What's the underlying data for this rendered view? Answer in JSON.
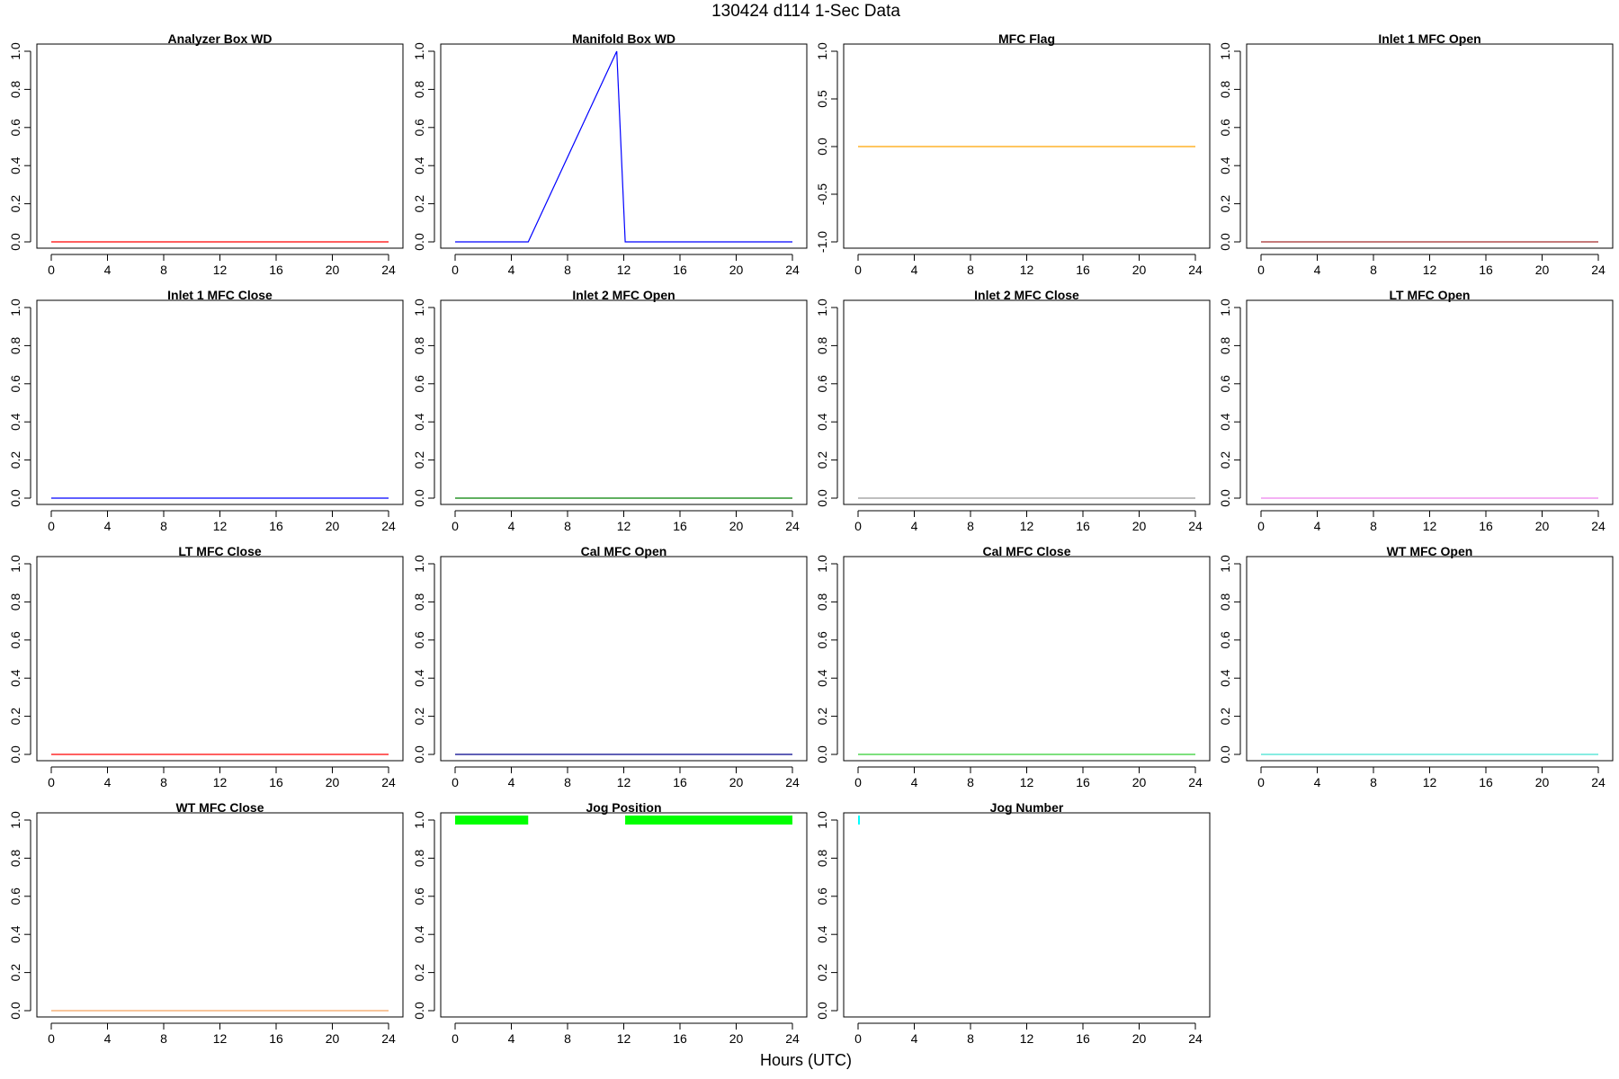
{
  "figure": {
    "title": "130424   d114   1-Sec Data",
    "xlabel": "Hours (UTC)"
  },
  "chart_data": [
    {
      "type": "line",
      "title": "Analyzer Box WD",
      "color": "#ff0000",
      "x": [
        0,
        24
      ],
      "values": [
        0,
        0
      ],
      "xlim": [
        0,
        24
      ],
      "ylim": [
        0,
        1
      ],
      "xticks": [
        "0",
        "4",
        "8",
        "12",
        "16",
        "20",
        "24"
      ],
      "yticks": [
        "0.0",
        "0.2",
        "0.4",
        "0.6",
        "0.8",
        "1.0"
      ]
    },
    {
      "type": "line",
      "title": "Manifold Box WD",
      "color": "#0000ff",
      "x": [
        0,
        5.2,
        11.5,
        12.1,
        24
      ],
      "values": [
        0,
        0,
        1,
        0,
        0
      ],
      "xlim": [
        0,
        24
      ],
      "ylim": [
        0,
        1
      ],
      "xticks": [
        "0",
        "4",
        "8",
        "12",
        "16",
        "20",
        "24"
      ],
      "yticks": [
        "0.0",
        "0.2",
        "0.4",
        "0.6",
        "0.8",
        "1.0"
      ]
    },
    {
      "type": "line",
      "title": "MFC Flag",
      "color": "#ffa500",
      "x": [
        0,
        24
      ],
      "values": [
        0,
        0
      ],
      "xlim": [
        0,
        24
      ],
      "ylim": [
        -1,
        1
      ],
      "xticks": [
        "0",
        "4",
        "8",
        "12",
        "16",
        "20",
        "24"
      ],
      "yticks": [
        "-1.0",
        "-0.5",
        "0.0",
        "0.5",
        "1.0"
      ]
    },
    {
      "type": "line",
      "title": "Inlet 1 MFC Open",
      "color": "#a52a2a",
      "x": [
        0,
        24
      ],
      "values": [
        0,
        0
      ],
      "xlim": [
        0,
        24
      ],
      "ylim": [
        0,
        1
      ],
      "xticks": [
        "0",
        "4",
        "8",
        "12",
        "16",
        "20",
        "24"
      ],
      "yticks": [
        "0.0",
        "0.2",
        "0.4",
        "0.6",
        "0.8",
        "1.0"
      ]
    },
    {
      "type": "line",
      "title": "Inlet 1 MFC Close",
      "color": "#0000ff",
      "x": [
        0,
        24
      ],
      "values": [
        0,
        0
      ],
      "xlim": [
        0,
        24
      ],
      "ylim": [
        0,
        1
      ],
      "xticks": [
        "0",
        "4",
        "8",
        "12",
        "16",
        "20",
        "24"
      ],
      "yticks": [
        "0.0",
        "0.2",
        "0.4",
        "0.6",
        "0.8",
        "1.0"
      ]
    },
    {
      "type": "line",
      "title": "Inlet 2 MFC Open",
      "color": "#008000",
      "x": [
        0,
        24
      ],
      "values": [
        0,
        0
      ],
      "xlim": [
        0,
        24
      ],
      "ylim": [
        0,
        1
      ],
      "xticks": [
        "0",
        "4",
        "8",
        "12",
        "16",
        "20",
        "24"
      ],
      "yticks": [
        "0.0",
        "0.2",
        "0.4",
        "0.6",
        "0.8",
        "1.0"
      ]
    },
    {
      "type": "line",
      "title": "Inlet 2 MFC Close",
      "color": "#999999",
      "x": [
        0,
        24
      ],
      "values": [
        0,
        0
      ],
      "xlim": [
        0,
        24
      ],
      "ylim": [
        0,
        1
      ],
      "xticks": [
        "0",
        "4",
        "8",
        "12",
        "16",
        "20",
        "24"
      ],
      "yticks": [
        "0.0",
        "0.2",
        "0.4",
        "0.6",
        "0.8",
        "1.0"
      ]
    },
    {
      "type": "line",
      "title": "LT MFC Open",
      "color": "#ee82ee",
      "x": [
        0,
        24
      ],
      "values": [
        0,
        0
      ],
      "xlim": [
        0,
        24
      ],
      "ylim": [
        0,
        1
      ],
      "xticks": [
        "0",
        "4",
        "8",
        "12",
        "16",
        "20",
        "24"
      ],
      "yticks": [
        "0.0",
        "0.2",
        "0.4",
        "0.6",
        "0.8",
        "1.0"
      ]
    },
    {
      "type": "line",
      "title": "LT MFC Close",
      "color": "#ff0000",
      "x": [
        0,
        24
      ],
      "values": [
        0,
        0
      ],
      "xlim": [
        0,
        24
      ],
      "ylim": [
        0,
        1
      ],
      "xticks": [
        "0",
        "4",
        "8",
        "12",
        "16",
        "20",
        "24"
      ],
      "yticks": [
        "0.0",
        "0.2",
        "0.4",
        "0.6",
        "0.8",
        "1.0"
      ]
    },
    {
      "type": "line",
      "title": "Cal MFC Open",
      "color": "#00008b",
      "x": [
        0,
        24
      ],
      "values": [
        0,
        0
      ],
      "xlim": [
        0,
        24
      ],
      "ylim": [
        0,
        1
      ],
      "xticks": [
        "0",
        "4",
        "8",
        "12",
        "16",
        "20",
        "24"
      ],
      "yticks": [
        "0.0",
        "0.2",
        "0.4",
        "0.6",
        "0.8",
        "1.0"
      ]
    },
    {
      "type": "line",
      "title": "Cal MFC Close",
      "color": "#32cd32",
      "x": [
        0,
        24
      ],
      "values": [
        0,
        0
      ],
      "xlim": [
        0,
        24
      ],
      "ylim": [
        0,
        1
      ],
      "xticks": [
        "0",
        "4",
        "8",
        "12",
        "16",
        "20",
        "24"
      ],
      "yticks": [
        "0.0",
        "0.2",
        "0.4",
        "0.6",
        "0.8",
        "1.0"
      ]
    },
    {
      "type": "line",
      "title": "WT MFC Open",
      "color": "#40e0d0",
      "x": [
        0,
        24
      ],
      "values": [
        0,
        0
      ],
      "xlim": [
        0,
        24
      ],
      "ylim": [
        0,
        1
      ],
      "xticks": [
        "0",
        "4",
        "8",
        "12",
        "16",
        "20",
        "24"
      ],
      "yticks": [
        "0.0",
        "0.2",
        "0.4",
        "0.6",
        "0.8",
        "1.0"
      ]
    },
    {
      "type": "line",
      "title": "WT MFC Close",
      "color": "#f4a460",
      "x": [
        0,
        24
      ],
      "values": [
        0,
        0
      ],
      "xlim": [
        0,
        24
      ],
      "ylim": [
        0,
        1
      ],
      "xticks": [
        "0",
        "4",
        "8",
        "12",
        "16",
        "20",
        "24"
      ],
      "yticks": [
        "0.0",
        "0.2",
        "0.4",
        "0.6",
        "0.8",
        "1.0"
      ]
    },
    {
      "type": "scatter",
      "title": "Jog Position",
      "color": "#00ff00",
      "segments": [
        {
          "x_start": 0,
          "x_end": 5.2,
          "value": 1
        },
        {
          "x_start": 12.1,
          "x_end": 24,
          "value": 1
        }
      ],
      "xlim": [
        0,
        24
      ],
      "ylim": [
        0,
        1
      ],
      "xticks": [
        "0",
        "4",
        "8",
        "12",
        "16",
        "20",
        "24"
      ],
      "yticks": [
        "0.0",
        "0.2",
        "0.4",
        "0.6",
        "0.8",
        "1.0"
      ]
    },
    {
      "type": "scatter",
      "title": "Jog Number",
      "color": "#00ffff",
      "segments": [
        {
          "x_start": 0,
          "x_end": 0.05,
          "value": 1
        }
      ],
      "xlim": [
        0,
        24
      ],
      "ylim": [
        0,
        1
      ],
      "xticks": [
        "0",
        "4",
        "8",
        "12",
        "16",
        "20",
        "24"
      ],
      "yticks": [
        "0.0",
        "0.2",
        "0.4",
        "0.6",
        "0.8",
        "1.0"
      ]
    }
  ]
}
